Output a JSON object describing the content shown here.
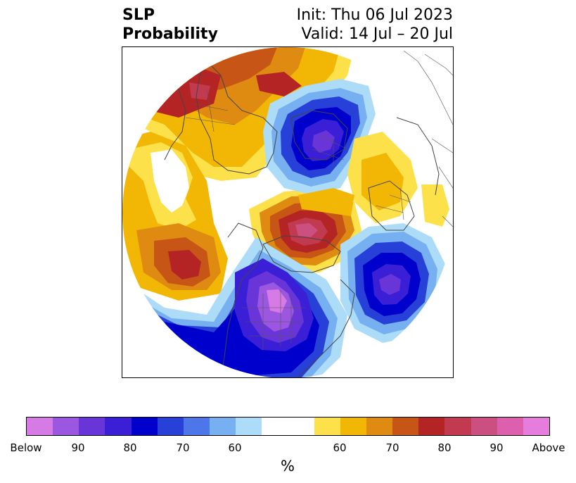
{
  "title": {
    "left_line1": "SLP",
    "left_line2": "Probability",
    "right_line1": "Init: Thu 06 Jul 2023",
    "right_line2": "Valid: 14 Jul – 20 Jul"
  },
  "map": {
    "projection": "north-polar-stereographic",
    "colors": {
      "below_max": "#d67ae6",
      "below_90": "#9b57e0",
      "below_85": "#6a35d8",
      "below_80": "#3a1fd6",
      "below_75": "#0000cc",
      "below_70": "#2740d8",
      "below_65": "#4d77e8",
      "below_60": "#76b0f0",
      "below_55": "#acdcf8",
      "neutral": "#ffffff",
      "above_55": "#fde14a",
      "above_60": "#f2b705",
      "above_65": "#df8a10",
      "above_70": "#c75516",
      "above_75": "#b42424",
      "above_80": "#c23a4f",
      "above_85": "#cc4f82",
      "above_90": "#dc60ad",
      "above_max": "#e67cdc"
    }
  },
  "colorbar": {
    "segments": [
      "#d67ae6",
      "#9b57e0",
      "#6a35d8",
      "#3a1fd6",
      "#0000cc",
      "#2740d8",
      "#4d77e8",
      "#76b0f0",
      "#acdcf8",
      "#ffffff",
      "#fde14a",
      "#f2b705",
      "#df8a10",
      "#c75516",
      "#b42424",
      "#c23a4f",
      "#cc4f82",
      "#dc60ad",
      "#e67cdc"
    ],
    "tick_labels": [
      "Below",
      "90",
      "80",
      "70",
      "60",
      "60",
      "70",
      "80",
      "90",
      "Above"
    ],
    "unit": "%"
  }
}
